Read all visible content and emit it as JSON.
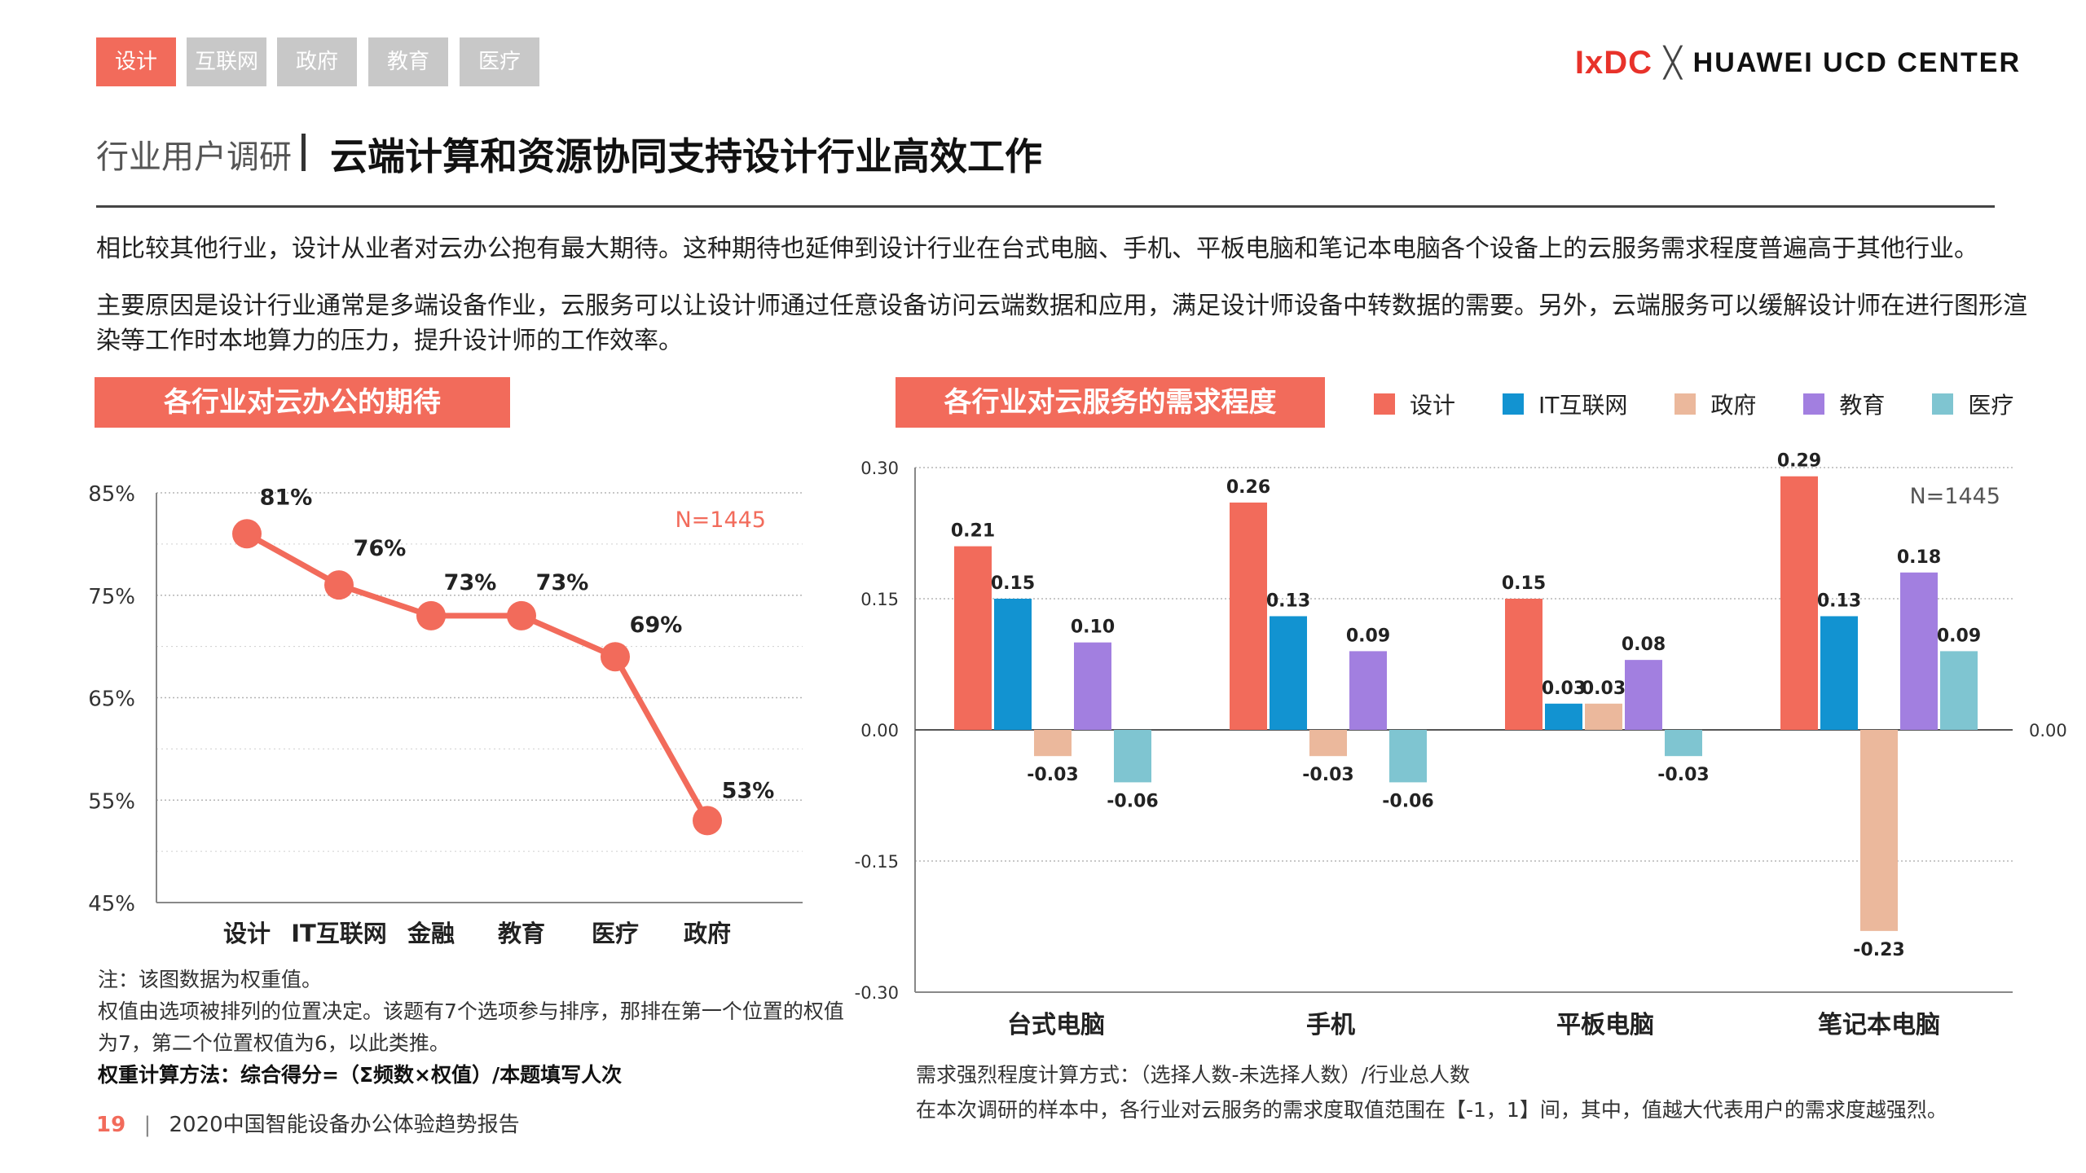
{
  "tags": [
    "设计",
    "互联网",
    "政府",
    "教育",
    "医疗"
  ],
  "logo": {
    "left": "IxDC",
    "x": "╳",
    "right": "HUAWEI UCD CENTER"
  },
  "header": {
    "section": "行业用户调研",
    "title": "云端计算和资源协同支持设计行业高效工作"
  },
  "paragraphs": [
    "相比较其他行业，设计从业者对云办公抱有最大期待。这种期待也延伸到设计行业在台式电脑、手机、平板电脑和笔记本电脑各个设备上的云服务需求程度普遍高于其他行业。",
    "主要原因是设计行业通常是多端设备作业，云服务可以让设计师通过任意设备访问云端数据和应用，满足设计师设备中转数据的需要。另外，云端服务可以缓解设计师在进行图形渲染等工作时本地算力的压力，提升设计师的工作效率。"
  ],
  "left_note": {
    "line1": "注：该图数据为权重值。",
    "line2": "权值由选项被排列的位置决定。该题有7个选项参与排序，那排在第一个位置的权值为7，第二个位置权值为6，以此类推。",
    "line3": "权重计算方法：综合得分=（Σ频数×权值）/本题填写人次"
  },
  "right_note": {
    "line1": "需求强烈程度计算方式：（选择人数-未选择人数）/行业总人数",
    "line2": "在本次调研的样本中，各行业对云服务的需求度取值范围在【-1，1】间，其中，值越大代表用户的需求度越强烈。"
  },
  "footer": {
    "page": "19",
    "sep": "|",
    "report": "2020中国智能设备办公体验趋势报告"
  },
  "colors": {
    "accent": "#F26B5B",
    "设计": "#F26B5B",
    "IT互联网": "#1293D1",
    "政府": "#EBB89C",
    "教育": "#A27FE0",
    "医疗": "#7FC5D1"
  },
  "chart_data": [
    {
      "type": "line",
      "title": "各行业对云办公的期待",
      "annotation": "N=1445",
      "categories": [
        "设计",
        "IT互联网",
        "金融",
        "教育",
        "医疗",
        "政府"
      ],
      "values": [
        81,
        76,
        73,
        73,
        69,
        53
      ],
      "value_labels": [
        "81%",
        "76%",
        "73%",
        "73%",
        "69%",
        "53%"
      ],
      "ylim": [
        45,
        85
      ],
      "yticks": [
        "85%",
        "75%",
        "65%",
        "55%",
        "45%"
      ],
      "grid": true,
      "color": "#F26B5B"
    },
    {
      "type": "bar",
      "title": "各行业对云服务的需求程度",
      "annotation": "N=1445",
      "categories": [
        "台式电脑",
        "手机",
        "平板电脑",
        "笔记本电脑"
      ],
      "series": [
        {
          "name": "设计",
          "values": [
            0.21,
            0.26,
            0.15,
            0.29
          ],
          "labels": [
            "0.21",
            "0.26",
            "0.15",
            "0.29"
          ]
        },
        {
          "name": "IT互联网",
          "values": [
            0.15,
            0.13,
            0.03,
            0.13
          ],
          "labels": [
            "0.15",
            "0.13",
            "0.03",
            "0.13"
          ]
        },
        {
          "name": "政府",
          "values": [
            -0.03,
            -0.03,
            0.03,
            -0.23
          ],
          "labels": [
            "-0.03",
            "-0.03",
            "0.03",
            "-0.23"
          ]
        },
        {
          "name": "教育",
          "values": [
            0.1,
            0.09,
            0.08,
            0.18
          ],
          "labels": [
            "0.10",
            "0.09",
            "0.08",
            "0.18"
          ]
        },
        {
          "name": "医疗",
          "values": [
            -0.06,
            -0.06,
            -0.03,
            0.09
          ],
          "labels": [
            "-0.06",
            "-0.06",
            "-0.03",
            "0.09"
          ]
        }
      ],
      "ylim": [
        -0.3,
        0.3
      ],
      "yticks": [
        "0.30",
        "0.15",
        "0.00",
        "-0.15",
        "-0.30"
      ],
      "right_zero_label": "0.00",
      "legend": "top"
    }
  ]
}
